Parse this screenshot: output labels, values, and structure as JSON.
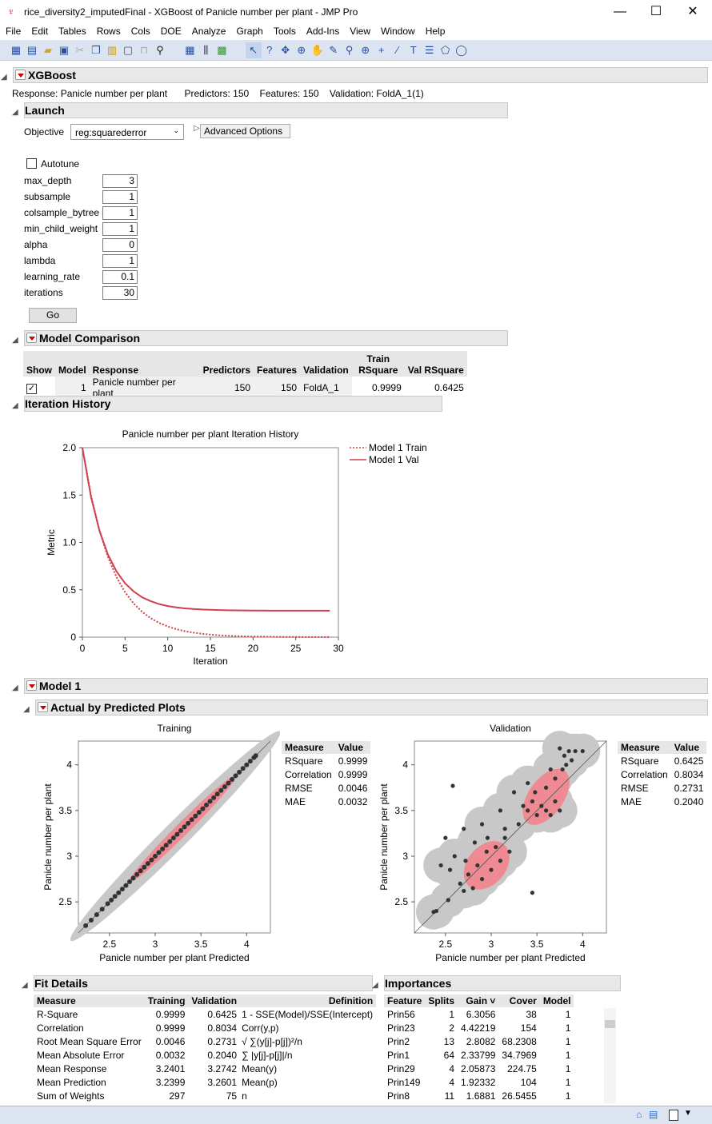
{
  "window": {
    "title": "rice_diversity2_imputedFinal - XGBoost of Panicle number per plant - JMP Pro",
    "minimize": "—",
    "maximize": "☐",
    "close": "✕"
  },
  "menu": [
    "File",
    "Edit",
    "Tables",
    "Rows",
    "Cols",
    "DOE",
    "Analyze",
    "Graph",
    "Tools",
    "Add-Ins",
    "View",
    "Window",
    "Help"
  ],
  "xgboost": {
    "title": "XGBoost",
    "response": "Response: Panicle number per plant",
    "predictors": "Predictors: 150",
    "features": "Features: 150",
    "validation": "Validation: FoldA_1(1)"
  },
  "launch": {
    "title": "Launch",
    "objective_label": "Objective",
    "objective_value": "reg:squarederror",
    "advanced_options": "Advanced Options",
    "autotune": "Autotune",
    "autotune_checked": false,
    "params": [
      {
        "label": "max_depth",
        "value": "3"
      },
      {
        "label": "subsample",
        "value": "1"
      },
      {
        "label": "colsample_bytree",
        "value": "1"
      },
      {
        "label": "min_child_weight",
        "value": "1"
      },
      {
        "label": "alpha",
        "value": "0"
      },
      {
        "label": "lambda",
        "value": "1"
      },
      {
        "label": "learning_rate",
        "value": "0.1"
      },
      {
        "label": "iterations",
        "value": "30"
      }
    ],
    "go": "Go"
  },
  "model_comparison": {
    "title": "Model Comparison",
    "headers": [
      "Show",
      "Model",
      "Response",
      "Predictors",
      "Features",
      "Validation",
      "Train RSquare",
      "Val RSquare"
    ],
    "rows": [
      {
        "show": true,
        "model": "1",
        "response": "Panicle number per plant",
        "predictors": "150",
        "features": "150",
        "validation": "FoldA_1",
        "train_rsq": "0.9999",
        "val_rsq": "0.6425"
      }
    ]
  },
  "iteration_history": {
    "title": "Iteration History"
  },
  "chart_data": [
    {
      "type": "line",
      "title": "Panicle number per plant Iteration History",
      "xlabel": "Iteration",
      "ylabel": "Metric",
      "xlim": [
        0,
        30
      ],
      "ylim": [
        0,
        2
      ],
      "xticks": [
        "0",
        "5",
        "10",
        "15",
        "20",
        "25",
        "30"
      ],
      "yticks": [
        "0",
        "0.5",
        "1.0",
        "1.5",
        "2.0"
      ],
      "legend": "right",
      "x": [
        0,
        1,
        2,
        3,
        4,
        5,
        6,
        7,
        8,
        9,
        10,
        11,
        12,
        13,
        14,
        15,
        16,
        17,
        18,
        19,
        20,
        21,
        22,
        23,
        24,
        25,
        26,
        27,
        28,
        29
      ],
      "series": [
        {
          "name": "Model 1 Train",
          "style": "dotted",
          "color": "#d0404c",
          "values": [
            2.0,
            1.5,
            1.125,
            0.844,
            0.633,
            0.475,
            0.356,
            0.267,
            0.2,
            0.15,
            0.113,
            0.084,
            0.063,
            0.048,
            0.036,
            0.027,
            0.02,
            0.015,
            0.011,
            0.008,
            0.006,
            0.005,
            0.004,
            0.003,
            0.002,
            0.002,
            0.001,
            0.001,
            0.001,
            0.001
          ]
        },
        {
          "name": "Model 1 Val",
          "style": "solid",
          "color": "#d0404c",
          "values": [
            2.0,
            1.484,
            1.123,
            0.87,
            0.693,
            0.569,
            0.483,
            0.421,
            0.38,
            0.349,
            0.328,
            0.314,
            0.304,
            0.297,
            0.292,
            0.289,
            0.286,
            0.284,
            0.283,
            0.282,
            0.281,
            0.281,
            0.28,
            0.28,
            0.28,
            0.28,
            0.28,
            0.28,
            0.28,
            0.28
          ]
        }
      ]
    },
    {
      "type": "scatter",
      "title": "Training",
      "xlabel": "Panicle number per plant Predicted",
      "ylabel": "Panicle number per plant",
      "xlim": [
        2.16,
        4.26
      ],
      "ylim": [
        2.16,
        4.26
      ],
      "xticks": [
        "2.5",
        "3",
        "3.5",
        "4"
      ],
      "yticks": [
        "2.5",
        "3",
        "3.5",
        "4"
      ],
      "points": [
        [
          2.24,
          2.24
        ],
        [
          2.3,
          2.3
        ],
        [
          2.36,
          2.36
        ],
        [
          2.42,
          2.42
        ],
        [
          2.48,
          2.48
        ],
        [
          2.52,
          2.52
        ],
        [
          2.56,
          2.56
        ],
        [
          2.6,
          2.6
        ],
        [
          2.64,
          2.64
        ],
        [
          2.68,
          2.68
        ],
        [
          2.72,
          2.72
        ],
        [
          2.76,
          2.76
        ],
        [
          2.8,
          2.8
        ],
        [
          2.84,
          2.84
        ],
        [
          2.88,
          2.88
        ],
        [
          2.92,
          2.92
        ],
        [
          2.96,
          2.96
        ],
        [
          3.0,
          3.0
        ],
        [
          3.04,
          3.04
        ],
        [
          3.08,
          3.08
        ],
        [
          3.12,
          3.12
        ],
        [
          3.16,
          3.16
        ],
        [
          3.2,
          3.2
        ],
        [
          3.24,
          3.24
        ],
        [
          3.28,
          3.28
        ],
        [
          3.32,
          3.32
        ],
        [
          3.36,
          3.36
        ],
        [
          3.4,
          3.4
        ],
        [
          3.44,
          3.44
        ],
        [
          3.48,
          3.48
        ],
        [
          3.52,
          3.52
        ],
        [
          3.56,
          3.56
        ],
        [
          3.6,
          3.6
        ],
        [
          3.64,
          3.64
        ],
        [
          3.68,
          3.68
        ],
        [
          3.72,
          3.72
        ],
        [
          3.76,
          3.76
        ],
        [
          3.8,
          3.8
        ],
        [
          3.84,
          3.84
        ],
        [
          3.88,
          3.88
        ],
        [
          3.92,
          3.92
        ],
        [
          3.96,
          3.96
        ],
        [
          4.0,
          4.0
        ],
        [
          4.04,
          4.04
        ],
        [
          4.08,
          4.08
        ],
        [
          4.1,
          4.1
        ]
      ]
    },
    {
      "type": "scatter",
      "title": "Validation",
      "xlabel": "Panicle number per plant Predicted",
      "ylabel": "Panicle number per plant",
      "xlim": [
        2.16,
        4.26
      ],
      "ylim": [
        2.16,
        4.26
      ],
      "xticks": [
        "2.5",
        "3",
        "3.5",
        "4"
      ],
      "yticks": [
        "2.5",
        "3",
        "3.5",
        "4"
      ],
      "points": [
        [
          2.58,
          3.77
        ],
        [
          3.45,
          2.6
        ],
        [
          2.4,
          2.4
        ],
        [
          2.37,
          2.39
        ],
        [
          2.53,
          2.52
        ],
        [
          2.66,
          2.7
        ],
        [
          2.7,
          2.62
        ],
        [
          2.75,
          2.8
        ],
        [
          2.8,
          2.65
        ],
        [
          2.85,
          2.9
        ],
        [
          2.9,
          2.75
        ],
        [
          2.95,
          3.05
        ],
        [
          3.0,
          2.85
        ],
        [
          3.05,
          3.1
        ],
        [
          3.1,
          2.95
        ],
        [
          2.72,
          2.95
        ],
        [
          2.6,
          3.0
        ],
        [
          2.55,
          2.85
        ],
        [
          2.82,
          3.15
        ],
        [
          2.96,
          3.2
        ],
        [
          3.15,
          3.3
        ],
        [
          3.2,
          3.05
        ],
        [
          2.5,
          3.2
        ],
        [
          2.7,
          3.3
        ],
        [
          2.9,
          3.35
        ],
        [
          3.3,
          3.35
        ],
        [
          3.35,
          3.55
        ],
        [
          3.4,
          3.5
        ],
        [
          3.45,
          3.6
        ],
        [
          3.5,
          3.45
        ],
        [
          3.55,
          3.55
        ],
        [
          3.6,
          3.5
        ],
        [
          3.65,
          3.45
        ],
        [
          3.7,
          3.6
        ],
        [
          3.75,
          3.5
        ],
        [
          3.48,
          3.7
        ],
        [
          3.6,
          3.75
        ],
        [
          3.7,
          3.85
        ],
        [
          3.78,
          3.95
        ],
        [
          3.8,
          4.1
        ],
        [
          3.85,
          4.15
        ],
        [
          3.88,
          4.05
        ],
        [
          3.92,
          4.15
        ],
        [
          3.75,
          4.18
        ],
        [
          3.82,
          4.0
        ],
        [
          4.0,
          4.15
        ],
        [
          3.65,
          3.95
        ],
        [
          3.4,
          3.8
        ],
        [
          3.25,
          3.7
        ],
        [
          3.1,
          3.5
        ],
        [
          3.15,
          3.2
        ],
        [
          2.45,
          2.9
        ]
      ]
    }
  ],
  "model1": {
    "title": "Model 1",
    "avp_title": "Actual by Predicted Plots",
    "training_stats": {
      "headers": [
        "Measure",
        "Value"
      ],
      "rows": [
        [
          "RSquare",
          "0.9999"
        ],
        [
          "Correlation",
          "0.9999"
        ],
        [
          "RMSE",
          "0.0046"
        ],
        [
          "MAE",
          "0.0032"
        ]
      ]
    },
    "validation_stats": {
      "headers": [
        "Measure",
        "Value"
      ],
      "rows": [
        [
          "RSquare",
          "0.6425"
        ],
        [
          "Correlation",
          "0.8034"
        ],
        [
          "RMSE",
          "0.2731"
        ],
        [
          "MAE",
          "0.2040"
        ]
      ]
    }
  },
  "fit_details": {
    "title": "Fit Details",
    "headers": [
      "Measure",
      "Training",
      "Validation",
      "Definition"
    ],
    "rows": [
      [
        "R-Square",
        "0.9999",
        "0.6425",
        "1 - SSE(Model)/SSE(Intercept)"
      ],
      [
        "Correlation",
        "0.9999",
        "0.8034",
        "Corr(y,p)"
      ],
      [
        "Root Mean Square Error",
        "0.0046",
        "0.2731",
        "√ ∑(y[j]-p[j])²/n"
      ],
      [
        "Mean Absolute Error",
        "0.0032",
        "0.2040",
        "∑ |y[j]-p[j]|/n"
      ],
      [
        "Mean Response",
        "3.2401",
        "3.2742",
        "Mean(y)"
      ],
      [
        "Mean Prediction",
        "3.2399",
        "3.2601",
        "Mean(p)"
      ],
      [
        "Sum of Weights",
        "297",
        "75",
        "n"
      ]
    ]
  },
  "importances": {
    "title": "Importances",
    "headers": [
      "Feature",
      "Splits",
      "Gain ˅",
      "Cover",
      "Model"
    ],
    "rows": [
      [
        "Prin56",
        "1",
        "6.3056",
        "38",
        "1"
      ],
      [
        "Prin23",
        "2",
        "4.42219",
        "154",
        "1"
      ],
      [
        "Prin2",
        "13",
        "2.8082",
        "68.2308",
        "1"
      ],
      [
        "Prin1",
        "64",
        "2.33799",
        "34.7969",
        "1"
      ],
      [
        "Prin29",
        "4",
        "2.05873",
        "224.75",
        "1"
      ],
      [
        "Prin149",
        "4",
        "1.92332",
        "104",
        "1"
      ],
      [
        "Prin8",
        "11",
        "1.6881",
        "26.5455",
        "1"
      ]
    ]
  },
  "colors": {
    "accent_red": "#d0404c",
    "density_red": "#f08a92",
    "density_gray": "#c8c8c8",
    "toolbar": "#dce4f2"
  }
}
